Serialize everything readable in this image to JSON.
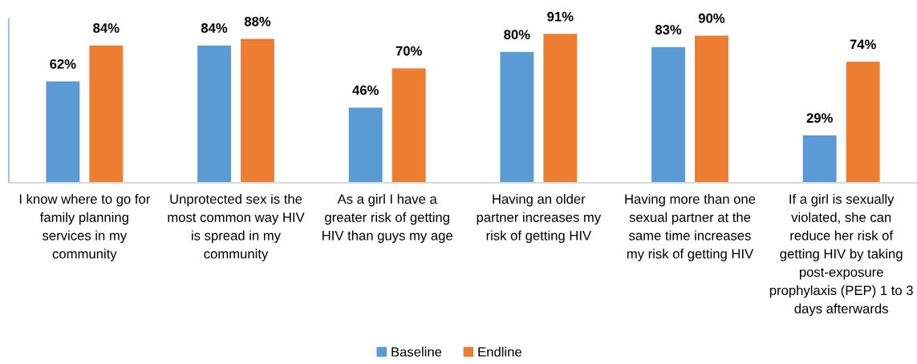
{
  "chart_data": {
    "type": "bar",
    "categories": [
      "I know where to go for\nfamily planning\nservices in my\ncommunity",
      "Unprotected sex is the\nmost common way HIV\nis spread in my\ncommunity",
      "As a girl I have a\ngreater risk of getting\nHIV than guys my age",
      "Having an older\npartner increases my\nrisk of getting HIV",
      "Having more than one\nsexual partner at the\nsame time increases\nmy risk of getting HIV",
      "If a girl is sexually\nviolated, she can\nreduce her risk of\ngetting HIV by taking\npost-exposure\nprophylaxis (PEP) 1 to 3\ndays afterwards"
    ],
    "series": [
      {
        "name": "Baseline",
        "color": "#5b9bd5",
        "values": [
          62,
          84,
          46,
          80,
          83,
          29
        ],
        "value_labels": [
          "62%",
          "84%",
          "46%",
          "80%",
          "83%",
          "29%"
        ]
      },
      {
        "name": "Endline",
        "color": "#ed7d31",
        "values": [
          84,
          88,
          70,
          91,
          90,
          74
        ],
        "value_labels": [
          "84%",
          "88%",
          "70%",
          "91%",
          "90%",
          "74%"
        ]
      }
    ],
    "ylim": [
      0,
      100
    ],
    "tick_labels": "x",
    "legend": "bottom"
  }
}
